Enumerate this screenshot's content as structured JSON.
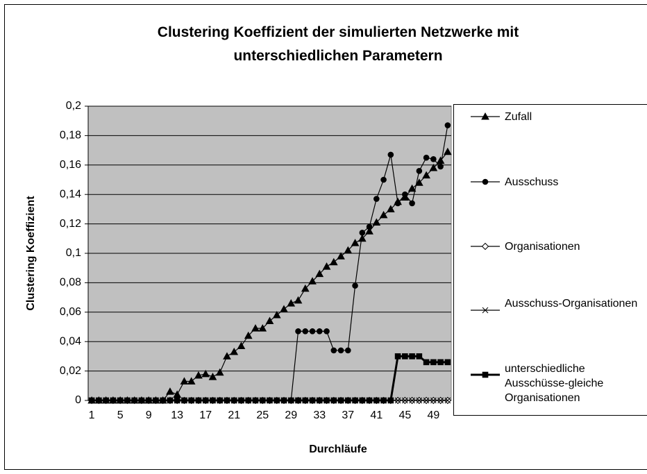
{
  "chart_data": {
    "type": "line",
    "title": "Clustering Koeffizient der simulierten Netzwerke mit unterschiedlichen Parametern",
    "x_label": "Durchläufe",
    "y_label": "Clustering Koeffizient",
    "categories": [
      1,
      null,
      null,
      null,
      5,
      null,
      null,
      null,
      9,
      null,
      null,
      null,
      13,
      null,
      null,
      null,
      17,
      null,
      null,
      null,
      21,
      null,
      null,
      null,
      25,
      null,
      null,
      null,
      29,
      null,
      null,
      null,
      33,
      null,
      null,
      null,
      37,
      null,
      null,
      null,
      41,
      null,
      null,
      null,
      45,
      null,
      null,
      null,
      49,
      null,
      null
    ],
    "ylim": [
      0,
      0.2
    ],
    "yticks": [
      0,
      {
        "value": 0.02,
        "label": "0,02"
      },
      {
        "value": 0.04,
        "label": "0,04"
      },
      {
        "value": 0.06,
        "label": "0,06"
      },
      {
        "value": 0.08,
        "label": "0,08"
      },
      {
        "value": 0.1,
        "label": "0,1"
      },
      {
        "value": 0.12,
        "label": "0,12"
      },
      {
        "value": 0.14,
        "label": "0,14"
      },
      {
        "value": 0.16,
        "label": "0,16"
      },
      {
        "value": 0.18,
        "label": "0,18"
      },
      {
        "value": 0.2,
        "label": "0,2"
      }
    ],
    "grid": true,
    "legend": "right",
    "series": [
      {
        "name": "Zufall",
        "color": "#000000",
        "marker": "triangle",
        "values": [
          0,
          0,
          0,
          0,
          0,
          0,
          0,
          0,
          0,
          0,
          0,
          0.006,
          0.004,
          0.013,
          0.013,
          0.017,
          0.018,
          0.016,
          0.019,
          0.03,
          0.033,
          0.037,
          0.044,
          0.049,
          0.049,
          0.054,
          0.058,
          0.062,
          0.066,
          0.068,
          0.076,
          0.081,
          0.086,
          0.091,
          0.094,
          0.098,
          0.102,
          0.107,
          0.11,
          0.115,
          0.121,
          0.126,
          0.13,
          0.135,
          0.138,
          0.144,
          0.148,
          0.153,
          0.158,
          0.163,
          0.169
        ]
      },
      {
        "name": "Ausschuss",
        "color": "#000000",
        "marker": "circle",
        "values": [
          0,
          0,
          0,
          0,
          0,
          0,
          0,
          0,
          0,
          0,
          0,
          0,
          0,
          0,
          0,
          0,
          0,
          0,
          0,
          0,
          0,
          0,
          0,
          0,
          0,
          0,
          0,
          0,
          0,
          0.047,
          0.047,
          0.047,
          0.047,
          0.047,
          0.034,
          0.034,
          0.034,
          0.078,
          0.114,
          0.118,
          0.137,
          0.15,
          0.167,
          0.134,
          0.14,
          0.134,
          0.156,
          0.165,
          0.164,
          0.159,
          0.187
        ]
      },
      {
        "name": "Organisationen",
        "color": "#000000",
        "marker": "diamond",
        "values": [
          0,
          0,
          0,
          0,
          0,
          0,
          0,
          0,
          0,
          0,
          0,
          0,
          0,
          0,
          0,
          0,
          0,
          0,
          0,
          0,
          0,
          0,
          0,
          0,
          0,
          0,
          0,
          0,
          0,
          0,
          0,
          0,
          0,
          0,
          0,
          0,
          0,
          0,
          0,
          0,
          0,
          0,
          0,
          0,
          0,
          0,
          0,
          0,
          0,
          0,
          0
        ]
      },
      {
        "name": "Ausschuss-Organisationen",
        "color": "#000000",
        "marker": "x",
        "values": [
          0,
          0,
          0,
          0,
          0,
          0,
          0,
          0,
          0,
          0,
          0,
          0,
          0,
          0,
          0,
          0,
          0,
          0,
          0,
          0,
          0,
          0,
          0,
          0,
          0,
          0,
          0,
          0,
          0,
          0,
          0,
          0,
          0,
          0,
          0,
          0,
          0,
          0,
          0,
          0,
          0,
          0,
          0,
          0,
          0,
          0,
          0,
          0,
          0,
          0,
          0
        ]
      },
      {
        "name": "unterschiedliche Ausschüsse-gleiche Organisationen",
        "color": "#000000",
        "marker": "square",
        "values": [
          0,
          0,
          0,
          0,
          0,
          0,
          0,
          0,
          0,
          0,
          0,
          0,
          0,
          0,
          0,
          0,
          0,
          0,
          0,
          0,
          0,
          0,
          0,
          0,
          0,
          0,
          0,
          0,
          0,
          0,
          0,
          0,
          0,
          0,
          0,
          0,
          0,
          0,
          0,
          0,
          0,
          0,
          0,
          0.03,
          0.03,
          0.03,
          0.03,
          0.026,
          0.026,
          0.026,
          0.026
        ]
      }
    ]
  }
}
